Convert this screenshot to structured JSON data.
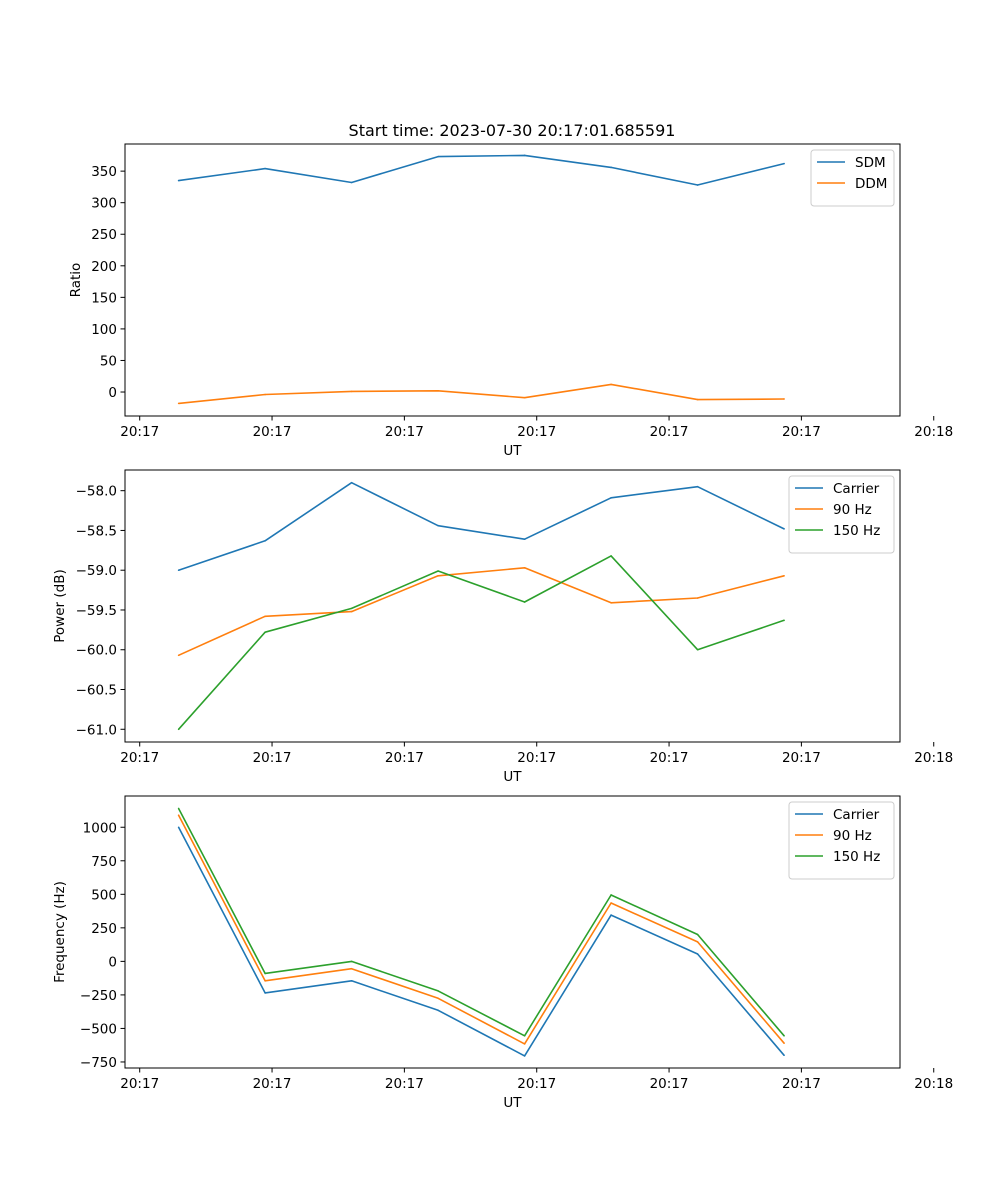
{
  "figure": {
    "title": "Start time: 2023-07-30 20:17:01.685591"
  },
  "chart_data": [
    {
      "type": "line",
      "title": "Start time: 2023-07-30 20:17:01.685591",
      "xlabel": "UT",
      "ylabel": "Ratio",
      "x": [
        1,
        2,
        3,
        4,
        5,
        6,
        7,
        8
      ],
      "xlim": [
        0.38,
        9.34
      ],
      "xticks": [
        0.55,
        2.08,
        3.61,
        5.14,
        6.67,
        8.2,
        9.73
      ],
      "xtick_labels": [
        "20:17",
        "20:17",
        "20:17",
        "20:17",
        "20:17",
        "20:17",
        "20:18"
      ],
      "ylim": [
        -38,
        393
      ],
      "yticks": [
        0,
        50,
        100,
        150,
        200,
        250,
        300,
        350
      ],
      "ytick_labels": [
        "0",
        "50",
        "100",
        "150",
        "200",
        "250",
        "300",
        "350"
      ],
      "legend": "top-right",
      "series": [
        {
          "name": "SDM",
          "color": "#1f77b4",
          "values": [
            335,
            354,
            332,
            373,
            375,
            356,
            328,
            362
          ]
        },
        {
          "name": "DDM",
          "color": "#ff7f0e",
          "values": [
            -18,
            -4,
            1,
            2,
            -9,
            12,
            -12,
            -11
          ]
        }
      ]
    },
    {
      "type": "line",
      "title": "",
      "xlabel": "UT",
      "ylabel": "Power (dB)",
      "x": [
        1,
        2,
        3,
        4,
        5,
        6,
        7,
        8
      ],
      "xlim": [
        0.38,
        9.34
      ],
      "xticks": [
        0.55,
        2.08,
        3.61,
        5.14,
        6.67,
        8.2,
        9.73
      ],
      "xtick_labels": [
        "20:17",
        "20:17",
        "20:17",
        "20:17",
        "20:17",
        "20:17",
        "20:18"
      ],
      "ylim": [
        -61.16,
        -57.74
      ],
      "yticks": [
        -61.0,
        -60.5,
        -60.0,
        -59.5,
        -59.0,
        -58.5,
        -58.0
      ],
      "ytick_labels": [
        "−61.0",
        "−60.5",
        "−60.0",
        "−59.5",
        "−59.0",
        "−58.5",
        "−58.0"
      ],
      "legend": "top-right",
      "series": [
        {
          "name": "Carrier",
          "color": "#1f77b4",
          "values": [
            -59.0,
            -58.63,
            -57.9,
            -58.44,
            -58.61,
            -58.09,
            -57.95,
            -58.48
          ]
        },
        {
          "name": "90 Hz",
          "color": "#ff7f0e",
          "values": [
            -60.07,
            -59.58,
            -59.52,
            -59.07,
            -58.97,
            -59.41,
            -59.35,
            -59.07
          ]
        },
        {
          "name": "150 Hz",
          "color": "#2ca02c",
          "values": [
            -61.0,
            -59.78,
            -59.48,
            -59.01,
            -59.4,
            -58.82,
            -60.0,
            -59.63
          ]
        }
      ]
    },
    {
      "type": "line",
      "title": "",
      "xlabel": "UT",
      "ylabel": "Frequency (Hz)",
      "x": [
        1,
        2,
        3,
        4,
        5,
        6,
        7,
        8
      ],
      "xlim": [
        0.38,
        9.34
      ],
      "xticks": [
        0.55,
        2.08,
        3.61,
        5.14,
        6.67,
        8.2,
        9.73
      ],
      "xtick_labels": [
        "20:17",
        "20:17",
        "20:17",
        "20:17",
        "20:17",
        "20:17",
        "20:18"
      ],
      "ylim": [
        -795,
        1233
      ],
      "yticks": [
        -750,
        -500,
        -250,
        0,
        250,
        500,
        750,
        1000
      ],
      "ytick_labels": [
        "−750",
        "−500",
        "−250",
        "0",
        "250",
        "500",
        "750",
        "1000"
      ],
      "legend": "top-right",
      "series": [
        {
          "name": "Carrier",
          "color": "#1f77b4",
          "values": [
            1000,
            -235,
            -145,
            -365,
            -705,
            345,
            55,
            -700
          ]
        },
        {
          "name": "90 Hz",
          "color": "#ff7f0e",
          "values": [
            1090,
            -145,
            -55,
            -275,
            -615,
            435,
            145,
            -610
          ]
        },
        {
          "name": "150 Hz",
          "color": "#2ca02c",
          "values": [
            1140,
            -90,
            0,
            -220,
            -555,
            495,
            200,
            -555
          ]
        }
      ]
    }
  ]
}
